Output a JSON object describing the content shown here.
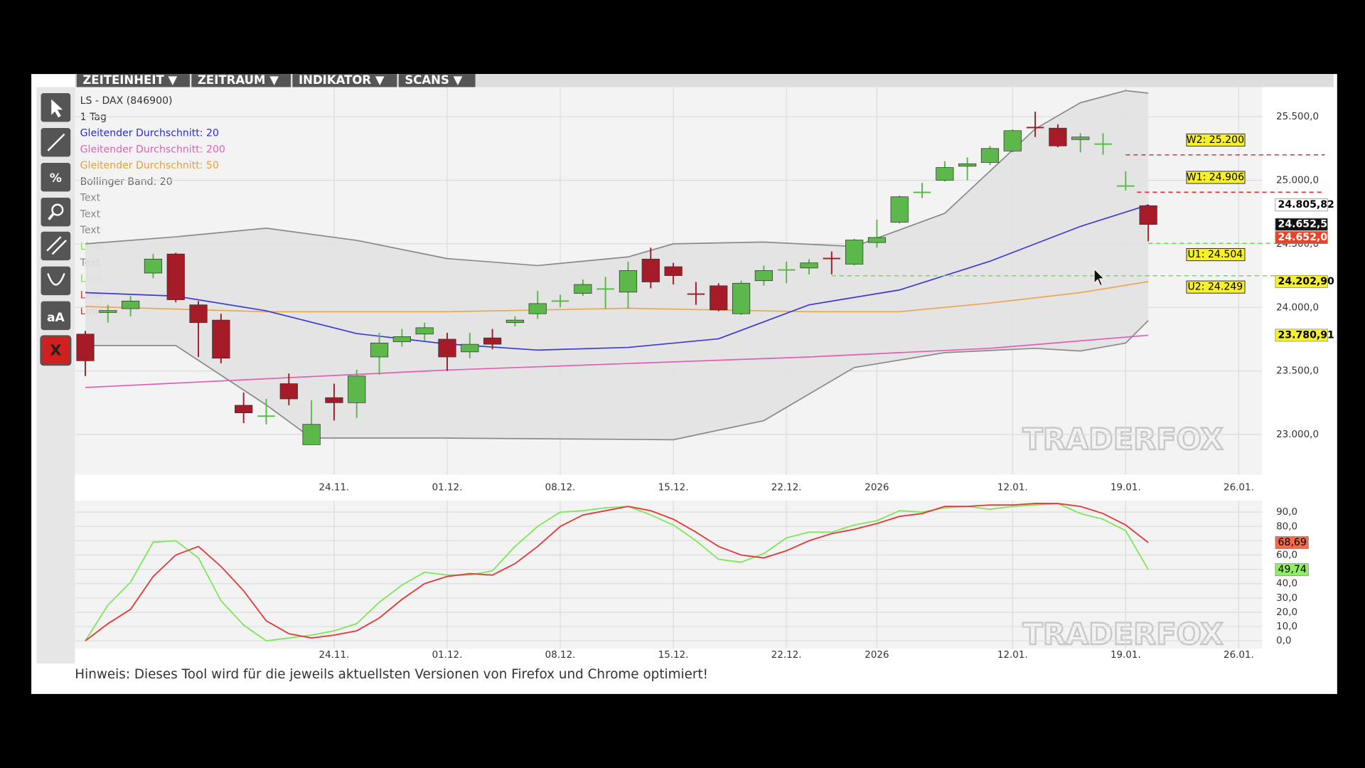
{
  "menu": [
    "ZEITEINHEIT ▼",
    "ZEITRAUM ▼",
    "INDIKATOR ▼",
    "SCANS ▼"
  ],
  "toolbar": [
    "%",
    "aA",
    "X"
  ],
  "legend": [
    {
      "text": "LS - DAX (846900)",
      "color": "#333"
    },
    {
      "text": "1 Tag",
      "color": "#333"
    },
    {
      "text": "Gleitender Durchschnitt: 20",
      "color": "#2b2bd6"
    },
    {
      "text": "Gleitender Durchschnitt: 200",
      "color": "#e05fb4"
    },
    {
      "text": "Gleitender Durchschnitt: 50",
      "color": "#e3a03c"
    },
    {
      "text": "Bollinger Band: 20",
      "color": "#666"
    },
    {
      "text": "Text",
      "color": "#888"
    },
    {
      "text": "Text",
      "color": "#888"
    },
    {
      "text": "Text",
      "color": "#888"
    },
    {
      "text": "Linie",
      "color": "#7ee05a"
    },
    {
      "text": "Text",
      "color": "#888"
    },
    {
      "text": "Linie",
      "color": "#7ee05a"
    },
    {
      "text": "Linie",
      "color": "#d33"
    },
    {
      "text": "Linie",
      "color": "#d33"
    }
  ],
  "watermark": "TRADERFOX",
  "footer": "Hinweis: Dieses Tool wird für die jeweils aktuellsten Versionen von Firefox und Chrome optimiert!",
  "chart_data": {
    "type": "candlestick",
    "up_color": "#5cb84a",
    "down_color": "#a51c28",
    "open": [
      23790,
      23960,
      23990,
      24270,
      24420,
      24020,
      23900,
      23230,
      23150,
      23400,
      22920,
      23290,
      23250,
      23610,
      23730,
      23790,
      23750,
      23650,
      23760,
      23880,
      23950,
      24050,
      24110,
      24150,
      24120,
      24380,
      24320,
      24110,
      24170,
      23950,
      24210,
      24290,
      24310,
      24390,
      24340,
      24510,
      24670,
      24910,
      25000,
      25110,
      25140,
      25230,
      25420,
      25410,
      25320,
      25290,
      24960,
      24800
    ],
    "high": [
      23815,
      24020,
      24090,
      24420,
      24430,
      24050,
      23950,
      23330,
      23280,
      23480,
      23270,
      23400,
      23510,
      23800,
      23830,
      23880,
      23800,
      23800,
      23830,
      23930,
      24130,
      24100,
      24220,
      24240,
      24360,
      24470,
      24350,
      24200,
      24190,
      24210,
      24330,
      24360,
      24380,
      24440,
      24540,
      24690,
      24880,
      24980,
      25150,
      25180,
      25270,
      25400,
      25540,
      25440,
      25370,
      25370,
      25070,
      24810
    ],
    "low": [
      23460,
      23880,
      23930,
      24230,
      24040,
      23610,
      23560,
      23090,
      23080,
      23230,
      22920,
      23110,
      23130,
      23470,
      23690,
      23740,
      23500,
      23600,
      23670,
      23850,
      23910,
      24000,
      24090,
      23990,
      23990,
      24150,
      24180,
      24020,
      23970,
      23940,
      24170,
      24190,
      24260,
      24260,
      24330,
      24470,
      24660,
      24860,
      24990,
      25000,
      25120,
      25220,
      25340,
      25260,
      25220,
      25200,
      24920,
      24520
    ],
    "close": [
      23580,
      23975,
      24050,
      24380,
      24060,
      23880,
      23600,
      23170,
      23150,
      23280,
      23080,
      23250,
      23460,
      23720,
      23770,
      23840,
      23610,
      23710,
      23710,
      23900,
      24030,
      24055,
      24180,
      24150,
      24290,
      24200,
      24250,
      24100,
      23980,
      24190,
      24290,
      24300,
      24350,
      24380,
      24530,
      24550,
      24870,
      24910,
      25100,
      25130,
      25250,
      25390,
      25410,
      25270,
      25340,
      25290,
      24960,
      24652.5
    ],
    "xlabels": [
      {
        "index": 11,
        "label": "24.11."
      },
      {
        "index": 16,
        "label": "01.12."
      },
      {
        "index": 21,
        "label": "08.12."
      },
      {
        "index": 26,
        "label": "15.12."
      },
      {
        "index": 31,
        "label": "22.12."
      },
      {
        "index": 35,
        "label": "2026"
      },
      {
        "index": 41,
        "label": "12.01."
      },
      {
        "index": 46,
        "label": "19.01."
      },
      {
        "index": 51,
        "label": "26.01."
      }
    ],
    "ylim": [
      22685,
      25733
    ],
    "yticks": [
      {
        "value": 23000,
        "label": "23.000,0"
      },
      {
        "value": 23500,
        "label": "23.500,0"
      },
      {
        "value": 24000,
        "label": "24.000,0"
      },
      {
        "value": 24500,
        "label": "24.500,0"
      },
      {
        "value": 25000,
        "label": "25.000,0"
      },
      {
        "value": 25500,
        "label": "25.500,0"
      }
    ],
    "lines": [
      {
        "name": "Bollinger Band: 20",
        "color": "#8a8a8a",
        "x": [
          0,
          4,
          8,
          12,
          16,
          20,
          24,
          26,
          30,
          34,
          38,
          42,
          44,
          46,
          47
        ],
        "values": [
          24500,
          24555,
          24623,
          24527,
          24384,
          24329,
          24397,
          24500,
          24514,
          24479,
          24740,
          25404,
          25610,
          25705,
          25685
        ]
      },
      {
        "name": "Bollinger Band: 20",
        "color": "#8a8a8a",
        "x": [
          0,
          4,
          8,
          10,
          16,
          26,
          30,
          34,
          38,
          42,
          44,
          46,
          47
        ],
        "values": [
          23700,
          23700,
          23233,
          22972,
          22972,
          22959,
          23109,
          23527,
          23644,
          23678,
          23657,
          23719,
          23897
        ]
      },
      {
        "name": "Gleitender Durchschnitt: 200",
        "color": "#e05fb4",
        "x": [
          0,
          16,
          32,
          40,
          47
        ],
        "values": [
          23370,
          23507,
          23610,
          23678,
          23780.91
        ]
      },
      {
        "name": "Gleitender Durchschnitt: 50",
        "color": "#e8a854",
        "x": [
          0,
          8,
          16,
          24,
          32,
          36,
          40,
          44,
          47
        ],
        "values": [
          24007,
          23966,
          23966,
          23993,
          23966,
          23966,
          24034,
          24116,
          24202.9
        ]
      },
      {
        "name": "Gleitender Durchschnitt: 20",
        "color": "#3a3ad8",
        "x": [
          0,
          4,
          8,
          12,
          16,
          20,
          24,
          28,
          32,
          36,
          40,
          44,
          47
        ],
        "values": [
          24116,
          24089,
          23973,
          23794,
          23712,
          23664,
          23685,
          23753,
          24020,
          24137,
          24363,
          24637,
          24805.82
        ]
      }
    ],
    "levels": [
      {
        "label": "W2: 25.200",
        "value": 25200,
        "start": 46,
        "color": "#e03030",
        "box": "above"
      },
      {
        "label": "W1: 24.906",
        "value": 24906,
        "start": 46.5,
        "color": "#e03030",
        "box": "above"
      },
      {
        "label": "U1: 24.504",
        "value": 24504,
        "start": 47,
        "color": "#6fe050",
        "box": "below"
      },
      {
        "label": "U2: 24.249",
        "value": 24249,
        "start": 33,
        "color": "#6fe050",
        "box": "below"
      }
    ],
    "price_labels": [
      {
        "value": 24805.82,
        "label": "24.805,82",
        "bg": "#ffffff",
        "fg": "#000"
      },
      {
        "value": 24652.5,
        "label": "24.652,5",
        "bg": "#111111",
        "fg": "#fff"
      },
      {
        "value": 24652,
        "label": "24.652,0",
        "bg": "#e8442a",
        "fg": "#fff"
      },
      {
        "value": 24202.9,
        "label": "24.202,90",
        "bg": "#f6f02a",
        "fg": "#000"
      },
      {
        "value": 23780.91,
        "label": "23.780,91",
        "bg": "#f6f02a",
        "fg": "#000"
      }
    ],
    "oscillator": {
      "ylim": [
        -5.5,
        98
      ],
      "yticks": [
        {
          "value": 0,
          "label": "0,0"
        },
        {
          "value": 10,
          "label": "10,0"
        },
        {
          "value": 20,
          "label": "20,0"
        },
        {
          "value": 30,
          "label": "30,0"
        },
        {
          "value": 40,
          "label": "40,0"
        },
        {
          "value": 50,
          "label": "50,0"
        },
        {
          "value": 60,
          "label": "60,0"
        },
        {
          "value": 70,
          "label": "70,0"
        },
        {
          "value": 80,
          "label": "80,0"
        },
        {
          "value": 90,
          "label": "90,0"
        }
      ],
      "series": [
        {
          "color": "#7ee85a",
          "values": [
            0,
            25,
            41,
            69,
            70,
            58,
            28,
            11,
            0,
            2,
            4,
            7,
            12,
            27,
            39,
            48,
            46,
            46,
            49,
            66,
            80,
            90,
            91,
            93,
            94,
            88,
            81,
            70,
            57,
            55,
            61,
            72,
            76,
            76,
            81,
            84,
            91,
            90,
            93,
            94,
            92,
            94,
            95,
            96,
            89,
            85,
            77,
            49.74
          ]
        },
        {
          "color": "#e03a3a",
          "values": [
            0,
            12,
            22,
            45,
            60,
            66,
            52,
            35,
            14,
            5,
            2,
            4,
            7,
            16,
            29,
            40,
            45,
            47,
            46,
            54,
            66,
            80,
            88,
            91,
            94,
            91,
            85,
            76,
            66,
            60,
            58,
            63,
            70,
            75,
            78,
            82,
            87,
            89,
            94,
            94,
            95,
            95,
            96,
            96,
            94,
            89,
            81,
            68.69
          ]
        }
      ],
      "labels": [
        {
          "value": 68.69,
          "label": "68,69",
          "bg": "#f26a4a"
        },
        {
          "value": 49.74,
          "label": "49,74",
          "bg": "#8ef060"
        }
      ]
    }
  }
}
